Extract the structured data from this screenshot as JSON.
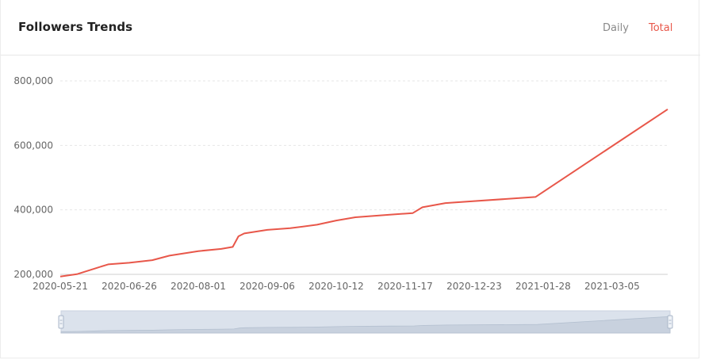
{
  "header": {
    "title": "Followers Trends",
    "tabs": [
      {
        "label": "Daily",
        "active": false
      },
      {
        "label": "Total",
        "active": true
      }
    ]
  },
  "colors": {
    "line": "#e8574a",
    "active_tab": "#e8574a",
    "inactive_tab": "#8a8a8a",
    "grid": "#e6e6e6",
    "slider_fill": "#dbe2ec",
    "slider_handle": "#aab6c8"
  },
  "chart_data": {
    "type": "line",
    "title": "",
    "xlabel": "",
    "ylabel": "",
    "ylim": [
      200000,
      800000
    ],
    "y_ticks": [
      "200,000",
      "400,000",
      "600,000",
      "800,000"
    ],
    "y_tick_values": [
      200000,
      400000,
      600000,
      800000
    ],
    "x_tick_labels": [
      "2020-05-21",
      "2020-06-26",
      "2020-08-01",
      "2020-09-06",
      "2020-10-12",
      "2020-11-17",
      "2020-12-23",
      "2021-01-28",
      "2021-03-05"
    ],
    "xlim": [
      "2020-05-21",
      "2021-04-03"
    ],
    "grid": true,
    "grid_style": "dashed-horizontal",
    "series": [
      {
        "x": [
          "2020-05-21",
          "2020-05-30",
          "2020-06-09",
          "2020-06-15",
          "2020-06-26",
          "2020-07-08",
          "2020-07-17",
          "2020-08-01",
          "2020-08-13",
          "2020-08-19",
          "2020-08-22",
          "2020-08-25",
          "2020-09-06",
          "2020-09-18",
          "2020-10-02",
          "2020-10-12",
          "2020-10-22",
          "2020-11-09",
          "2020-11-21",
          "2020-11-26",
          "2020-12-08",
          "2021-01-24",
          "2021-04-03"
        ],
        "values": [
          193000,
          201000,
          220000,
          231000,
          236000,
          244000,
          258000,
          272000,
          279000,
          285000,
          318000,
          327000,
          338000,
          343000,
          354000,
          367000,
          377000,
          385000,
          390000,
          408000,
          421000,
          440000,
          712000
        ]
      }
    ],
    "zoom_slider": {
      "start": "2020-05-21",
      "end": "2021-04-03"
    }
  }
}
